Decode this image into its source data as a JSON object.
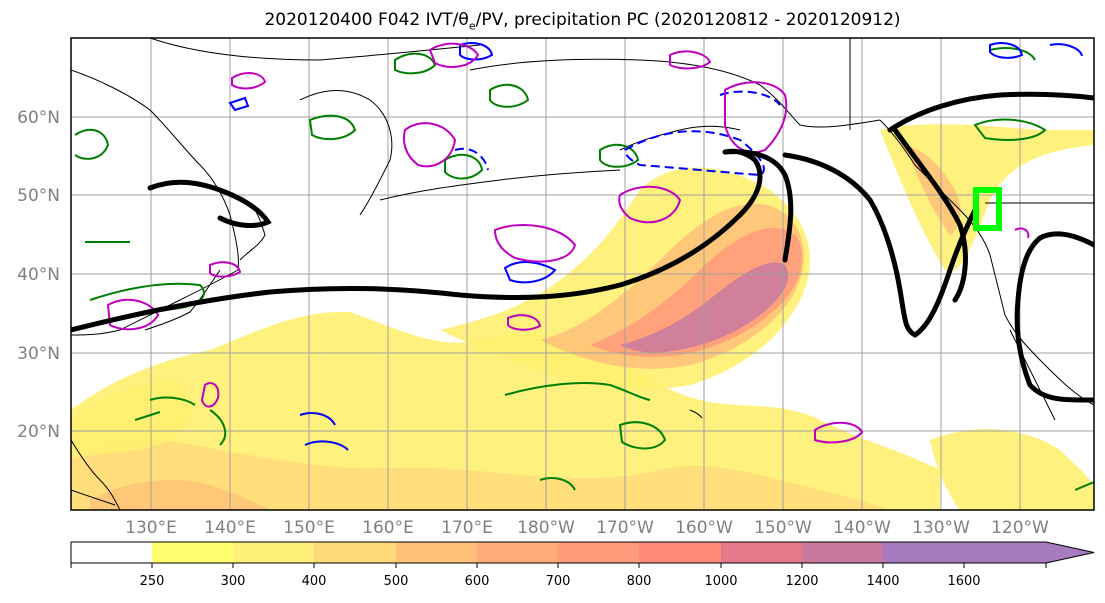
{
  "title": {
    "date": "2020120400",
    "forecast": "F042",
    "fields_prefix": "IVT/θ",
    "fields_sub": "e",
    "fields_suffix": "/PV, precipitation PC (2020120812 - 2020120912)"
  },
  "map": {
    "projection": "PlateCarree",
    "lon_range": [
      "120°E",
      "115°W"
    ],
    "lat_range": [
      10,
      70
    ],
    "gridlines": true,
    "lat_labels": [
      "60°N",
      "50°N",
      "40°N",
      "30°N",
      "20°N"
    ],
    "lon_labels": [
      "130°E",
      "140°E",
      "150°E",
      "160°E",
      "170°E",
      "180°W",
      "170°W",
      "160°W",
      "150°W",
      "140°W",
      "130°W",
      "120°W"
    ],
    "highlight_box_color": "#00ff00",
    "contour_colors": {
      "pc_line": "#000000",
      "theta_e_positive": "#008000",
      "theta_e_negative": "#0000ff",
      "pv": "#c000c0"
    }
  },
  "colorbar": {
    "ticks": [
      "250",
      "300",
      "400",
      "500",
      "600",
      "700",
      "800",
      "1000",
      "1200",
      "1400",
      "1600"
    ],
    "colors": [
      "#ffffff",
      "#ffff70",
      "#fff07a",
      "#ffd97a",
      "#ffc078",
      "#ffac7a",
      "#ff9a7a",
      "#ff8a7a",
      "#e67a8a",
      "#c87a9e",
      "#a87ac0"
    ],
    "extend": "max"
  }
}
